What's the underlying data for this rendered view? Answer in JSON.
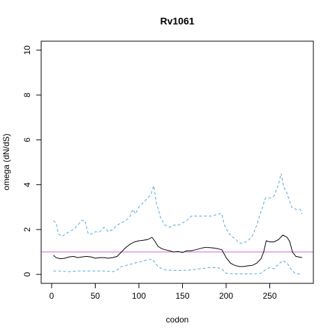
{
  "chart_data": {
    "type": "line",
    "title": "Rv1061",
    "xlabel": "codon",
    "ylabel": "omega (dN/dS)",
    "xlim": [
      -12,
      300
    ],
    "ylim": [
      -0.4,
      10.4
    ],
    "xticks": [
      0,
      50,
      100,
      150,
      200,
      250
    ],
    "yticks": [
      0,
      2,
      4,
      6,
      8,
      10
    ],
    "reference_line": {
      "y": 1,
      "color": "#cc66cc"
    },
    "series": [
      {
        "style": "solid",
        "color": "#000000",
        "x": [
          2,
          5,
          10,
          15,
          20,
          25,
          30,
          35,
          40,
          45,
          50,
          55,
          60,
          65,
          70,
          75,
          80,
          85,
          90,
          95,
          100,
          105,
          110,
          115,
          118,
          122,
          126,
          130,
          135,
          140,
          145,
          150,
          155,
          160,
          165,
          170,
          175,
          180,
          185,
          190,
          195,
          200,
          205,
          210,
          215,
          220,
          225,
          230,
          235,
          240,
          243,
          246,
          250,
          255,
          260,
          265,
          270,
          273,
          276,
          280,
          287
        ],
        "y": [
          0.85,
          0.75,
          0.7,
          0.72,
          0.78,
          0.8,
          0.75,
          0.78,
          0.8,
          0.78,
          0.72,
          0.75,
          0.75,
          0.72,
          0.75,
          0.8,
          1.0,
          1.2,
          1.35,
          1.45,
          1.5,
          1.52,
          1.55,
          1.65,
          1.5,
          1.25,
          1.15,
          1.1,
          1.05,
          1.0,
          1.02,
          0.98,
          1.05,
          1.05,
          1.1,
          1.15,
          1.2,
          1.2,
          1.18,
          1.15,
          1.1,
          0.75,
          0.5,
          0.4,
          0.35,
          0.35,
          0.38,
          0.4,
          0.5,
          0.7,
          1.0,
          1.5,
          1.45,
          1.45,
          1.55,
          1.75,
          1.65,
          1.45,
          1.0,
          0.8,
          0.75
        ]
      },
      {
        "style": "dashed",
        "color": "#4fa8dc",
        "x": [
          2,
          5,
          8,
          12,
          16,
          20,
          25,
          30,
          34,
          38,
          42,
          46,
          50,
          55,
          60,
          65,
          70,
          75,
          80,
          85,
          90,
          93,
          96,
          100,
          105,
          110,
          114,
          117,
          120,
          125,
          130,
          135,
          140,
          145,
          150,
          155,
          160,
          165,
          170,
          175,
          180,
          185,
          190,
          195,
          198,
          202,
          206,
          210,
          215,
          220,
          225,
          230,
          235,
          240,
          245,
          250,
          255,
          260,
          263,
          266,
          270,
          275,
          280,
          285,
          287
        ],
        "y": [
          2.4,
          2.3,
          1.8,
          1.7,
          1.8,
          1.9,
          2.0,
          2.2,
          2.4,
          2.4,
          1.8,
          1.8,
          1.9,
          1.9,
          2.1,
          1.9,
          2.0,
          2.2,
          2.3,
          2.4,
          2.6,
          2.9,
          2.7,
          3.0,
          3.2,
          3.4,
          3.6,
          3.95,
          3.2,
          2.5,
          2.2,
          2.1,
          2.2,
          2.2,
          2.3,
          2.4,
          2.6,
          2.6,
          2.6,
          2.6,
          2.6,
          2.6,
          2.7,
          2.7,
          2.2,
          1.9,
          1.7,
          1.6,
          1.4,
          1.4,
          1.5,
          1.7,
          2.2,
          2.8,
          3.4,
          3.4,
          3.5,
          4.0,
          4.5,
          3.9,
          3.6,
          3.0,
          2.9,
          2.9,
          2.7
        ]
      },
      {
        "style": "dashed",
        "color": "#4fa8dc",
        "x": [
          2,
          10,
          20,
          30,
          40,
          50,
          60,
          70,
          75,
          80,
          85,
          90,
          95,
          100,
          105,
          110,
          115,
          118,
          122,
          126,
          130,
          140,
          150,
          160,
          170,
          180,
          190,
          195,
          200,
          210,
          220,
          230,
          240,
          245,
          250,
          255,
          260,
          265,
          270,
          275,
          280,
          287
        ],
        "y": [
          0.15,
          0.15,
          0.12,
          0.15,
          0.15,
          0.15,
          0.15,
          0.12,
          0.2,
          0.35,
          0.4,
          0.45,
          0.5,
          0.55,
          0.6,
          0.65,
          0.68,
          0.55,
          0.35,
          0.25,
          0.2,
          0.18,
          0.18,
          0.2,
          0.25,
          0.3,
          0.3,
          0.25,
          0.05,
          0.02,
          0.02,
          0.02,
          0.05,
          0.2,
          0.3,
          0.25,
          0.45,
          0.62,
          0.5,
          0.2,
          0.02,
          0.02
        ]
      }
    ]
  }
}
